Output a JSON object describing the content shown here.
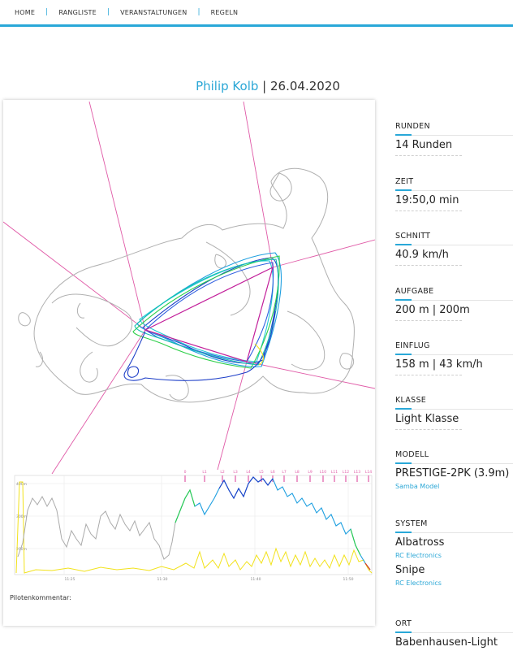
{
  "nav": {
    "items": [
      "HOME",
      "RANGLISTE",
      "VERANSTALTUNGEN",
      "REGELN"
    ],
    "separator": "|"
  },
  "title": {
    "pilot": "Philip Kolb",
    "separator": "|",
    "date": "26.04.2020"
  },
  "colors": {
    "accent": "#29a8d8",
    "task_lines": "#e05aa7",
    "track_gray": "#b0b0b0",
    "speed_line": "#f2e21b",
    "altitude_gray": "#aaaaaa"
  },
  "chart": {
    "y_ticks": [
      "400m",
      "300m",
      "200m"
    ],
    "x_ticks": [
      "11:25",
      "11:30",
      "11:40",
      "11:50"
    ],
    "lap_markers": [
      "0",
      "L1",
      "L2",
      "L3",
      "L4",
      "L5",
      "L6",
      "L7",
      "L8",
      "L9",
      "L10",
      "L11",
      "L12",
      "L13",
      "L14"
    ]
  },
  "comment": {
    "label": "Pilotenkommentar:"
  },
  "info": {
    "runden": {
      "label": "RUNDEN",
      "value": "14 Runden"
    },
    "zeit": {
      "label": "ZEIT",
      "value": "19:50,0 min"
    },
    "schnitt": {
      "label": "SCHNITT",
      "value": "40.9 km/h"
    },
    "aufgabe": {
      "label": "AUFGABE",
      "value": "200 m | 200m"
    },
    "einflug": {
      "label": "EINFLUG",
      "value": "158 m | 43 km/h"
    },
    "klasse": {
      "label": "KLASSE",
      "value": "Light Klasse"
    },
    "modell": {
      "label": "MODELL",
      "value": "PRESTIGE-2PK (3.9m)",
      "sub": "Samba Model"
    },
    "system": {
      "label": "SYSTEM",
      "items": [
        {
          "name": "Albatross",
          "sub": "RC Electronics"
        },
        {
          "name": "Snipe",
          "sub": "RC Electronics"
        }
      ]
    },
    "ort": {
      "label": "ORT",
      "value": "Babenhausen-Light"
    }
  }
}
